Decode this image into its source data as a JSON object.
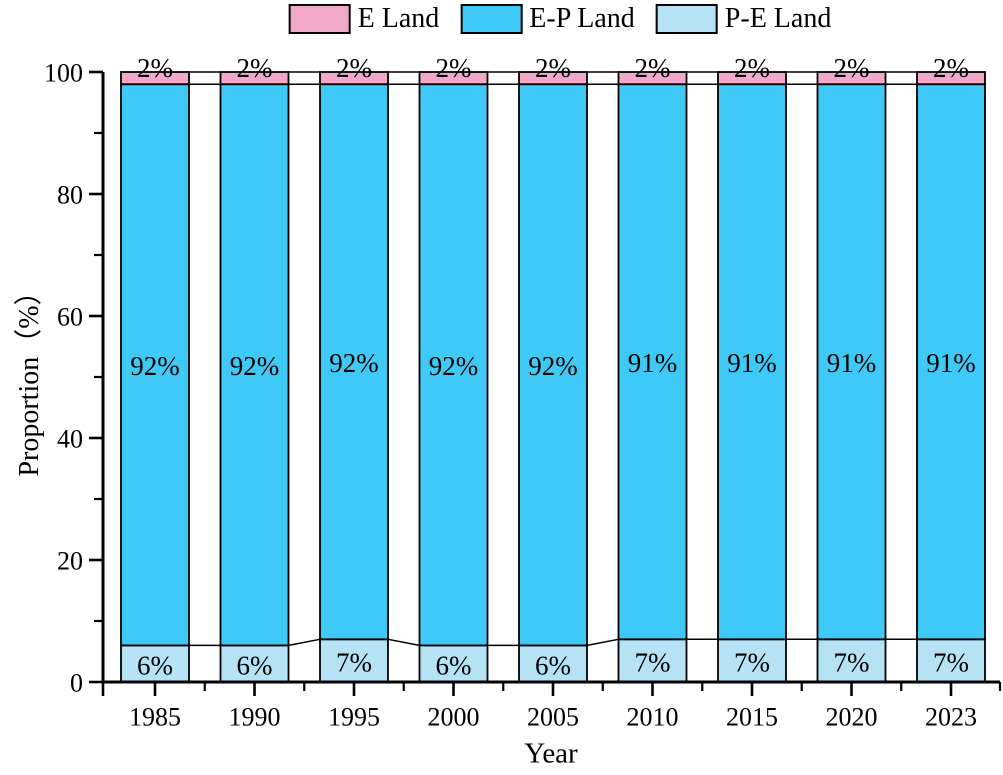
{
  "page": {
    "background": "#FFFFFF"
  },
  "chart_data": {
    "type": "bar",
    "stacked": true,
    "categories": [
      "1985",
      "1990",
      "1995",
      "2000",
      "2005",
      "2010",
      "2015",
      "2020",
      "2023"
    ],
    "series": [
      {
        "name": "P-E Land",
        "color": "#B5E2F5",
        "values": [
          6,
          6,
          7,
          6,
          6,
          7,
          7,
          7,
          7
        ]
      },
      {
        "name": "E-P Land",
        "color": "#3FC9F6",
        "values": [
          92,
          92,
          92,
          92,
          92,
          91,
          91,
          91,
          91
        ]
      },
      {
        "name": "E Land",
        "color": "#F2A8C9",
        "values": [
          2,
          2,
          2,
          2,
          2,
          2,
          2,
          2,
          2
        ]
      }
    ],
    "legend_items": [
      {
        "label": "E Land",
        "color": "#F2A8C9"
      },
      {
        "label": "E-P Land",
        "color": "#3FC9F6"
      },
      {
        "label": "P-E Land",
        "color": "#B5E2F5"
      }
    ],
    "legend_position": "top",
    "title": "",
    "xlabel": "Year",
    "ylabel": "Proportion（%）",
    "ylim": [
      0,
      100
    ],
    "yticks": [
      0,
      20,
      40,
      60,
      80,
      100
    ],
    "yticks_minor": [
      10,
      30,
      50,
      70,
      90
    ],
    "bar_total": 100,
    "label_suffix": "%",
    "grid": false,
    "axis_color": "#000000",
    "connector_lines": true
  }
}
